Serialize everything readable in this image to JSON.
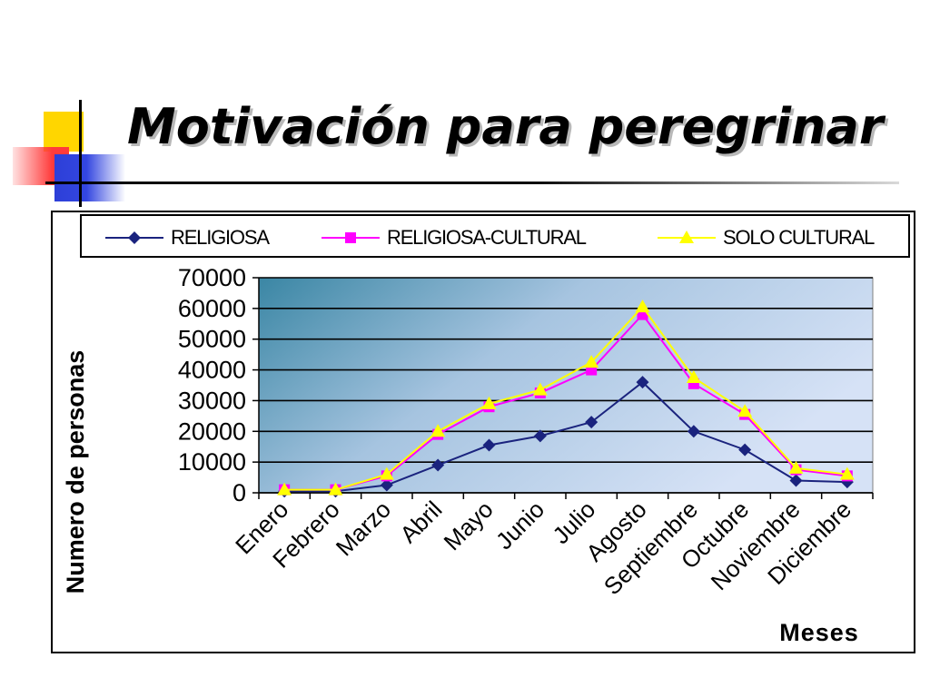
{
  "slide": {
    "title": "Motivación para peregrinar"
  },
  "legend": [
    {
      "name": "RELIGIOSA",
      "color": "#1a237e",
      "marker": "diamond"
    },
    {
      "name": "RELIGIOSA-CULTURAL",
      "color": "#ff00ff",
      "marker": "square"
    },
    {
      "name": "SOLO CULTURAL",
      "color": "#ffff00",
      "marker": "triangle"
    }
  ],
  "chart_data": {
    "type": "line",
    "title": "",
    "xlabel": "Meses",
    "ylabel": "Numero de personas",
    "ylim": [
      0,
      70000
    ],
    "yticks": [
      0,
      10000,
      20000,
      30000,
      40000,
      50000,
      60000,
      70000
    ],
    "grid": "horizontal",
    "legend_position": "top",
    "categories": [
      "Enero",
      "Febrero",
      "Marzo",
      "Abril",
      "Mayo",
      "Junio",
      "Julio",
      "Agosto",
      "Septiembre",
      "Octubre",
      "Noviembre",
      "Diciembre"
    ],
    "series": [
      {
        "name": "RELIGIOSA",
        "color": "#1a237e",
        "marker": "diamond",
        "values": [
          500,
          500,
          2500,
          9000,
          15500,
          18500,
          23000,
          36000,
          20000,
          14000,
          4000,
          3500
        ]
      },
      {
        "name": "RELIGIOSA-CULTURAL",
        "color": "#ff00ff",
        "marker": "square",
        "values": [
          1000,
          1000,
          5500,
          19000,
          28000,
          32500,
          40000,
          58000,
          35500,
          25500,
          7500,
          5500
        ]
      },
      {
        "name": "SOLO CULTURAL",
        "color": "#ffff00",
        "marker": "triangle",
        "values": [
          1000,
          1000,
          6000,
          20000,
          29000,
          33500,
          42500,
          60500,
          37500,
          26500,
          8000,
          6000
        ]
      }
    ]
  }
}
